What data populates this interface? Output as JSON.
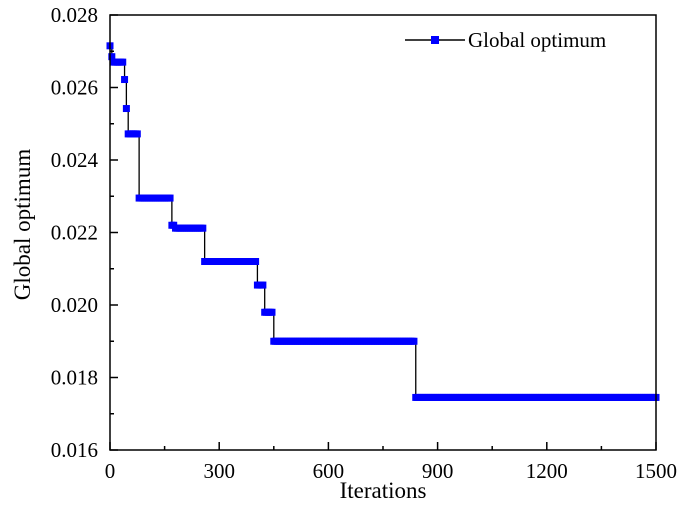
{
  "chart_data": {
    "type": "line",
    "xlabel": "Iterations",
    "ylabel": "Global optimum",
    "xlim": [
      0,
      1500
    ],
    "ylim": [
      0.016,
      0.028
    ],
    "x_ticks": [
      0,
      300,
      600,
      900,
      1200,
      1500
    ],
    "x_tick_labels": [
      "0",
      "300",
      "600",
      "900",
      "1200",
      "1500"
    ],
    "y_ticks": [
      0.016,
      0.018,
      0.02,
      0.022,
      0.024,
      0.026,
      0.028
    ],
    "y_tick_labels": [
      "0.016",
      "0.018",
      "0.020",
      "0.022",
      "0.024",
      "0.026",
      "0.028"
    ],
    "grid": false,
    "legend_position": "top-right",
    "series": [
      {
        "name": "Global optimum",
        "color": "#0000ff",
        "line_color": "#000000",
        "marker": "square",
        "step_points": [
          [
            0,
            0.02715
          ],
          [
            5,
            0.02685
          ],
          [
            10,
            0.0267
          ],
          [
            40,
            0.02622
          ],
          [
            45,
            0.02542
          ],
          [
            50,
            0.02472
          ],
          [
            80,
            0.02295
          ],
          [
            170,
            0.0222
          ],
          [
            180,
            0.02212
          ],
          [
            260,
            0.0212
          ],
          [
            405,
            0.02055
          ],
          [
            425,
            0.0198
          ],
          [
            450,
            0.019
          ],
          [
            840,
            0.01745
          ],
          [
            1500,
            0.01745
          ]
        ]
      }
    ]
  }
}
